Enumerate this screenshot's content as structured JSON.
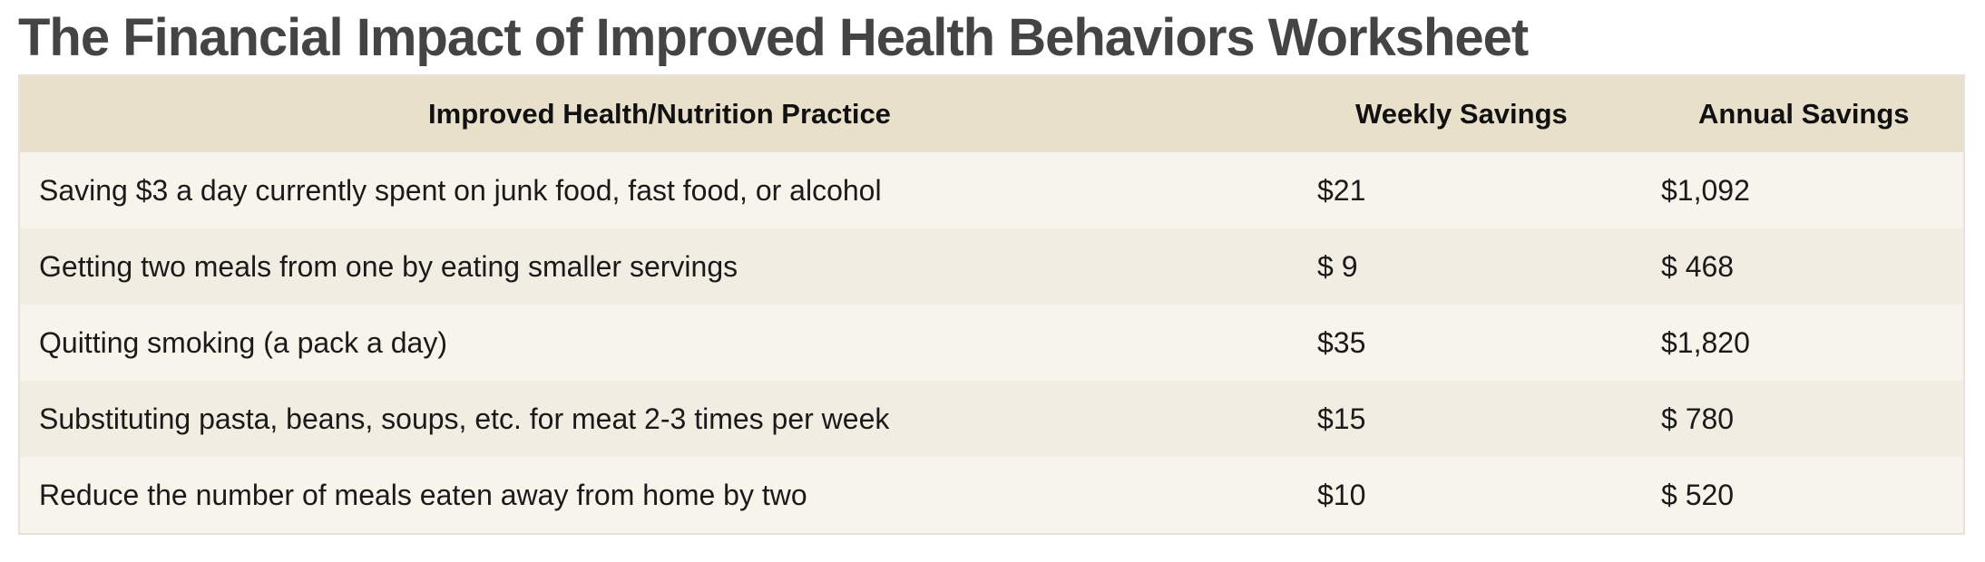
{
  "title": "The Financial Impact of Improved Health Behaviors Worksheet",
  "table": {
    "headers": {
      "practice": "Improved Health/Nutrition Practice",
      "weekly": "Weekly Savings",
      "annual": "Annual Savings"
    },
    "rows": [
      {
        "practice": "Saving $3 a day currently spent on junk food, fast food, or alcohol",
        "weekly": "$21",
        "annual": "$1,092"
      },
      {
        "practice": "Getting two meals from one by eating smaller servings",
        "weekly": "$ 9",
        "annual": "$ 468"
      },
      {
        "practice": "Quitting smoking (a pack a day)",
        "weekly": "$35",
        "annual": "$1,820"
      },
      {
        "practice": "Substituting pasta, beans, soups, etc. for meat 2-3 times per week",
        "weekly": "$15",
        "annual": "$ 780"
      },
      {
        "practice": "Reduce the number of meals eaten away from home by two",
        "weekly": "$10",
        "annual": "$ 520"
      }
    ]
  },
  "colors": {
    "title": "#444444",
    "header_bg": "#e8e0cb",
    "row_odd_bg": "#f7f4ec",
    "row_even_bg": "#f2ede2",
    "border": "#e6e3dc"
  }
}
